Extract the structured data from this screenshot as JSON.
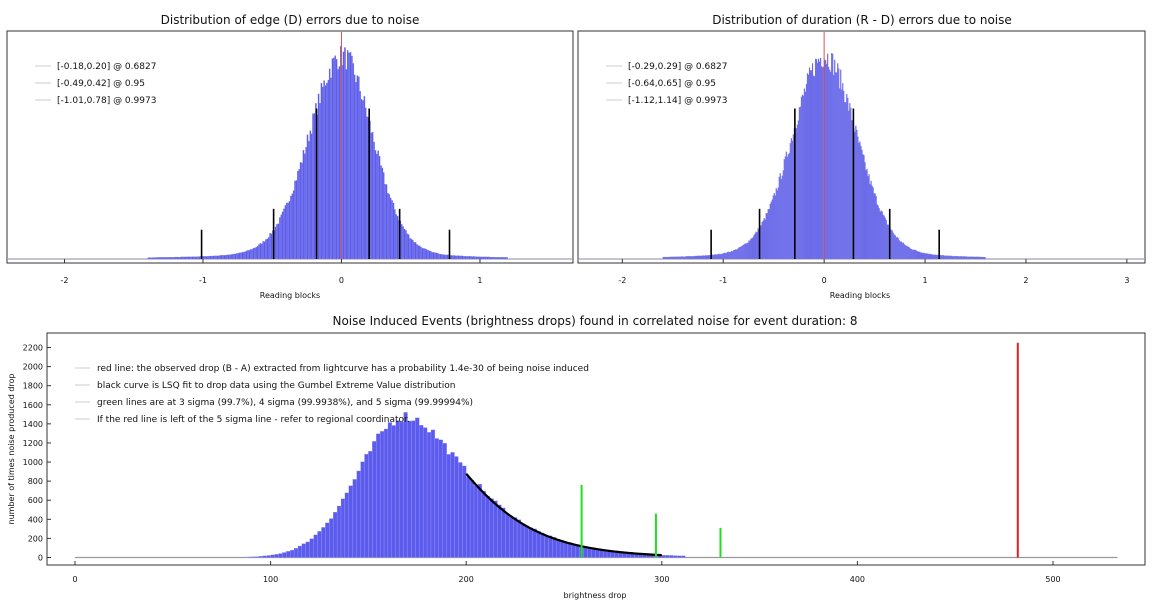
{
  "chart_data": [
    {
      "id": "edge",
      "type": "bar",
      "title": "Distribution of edge (D) errors due to noise",
      "xlabel": "Reading blocks",
      "xlim": [
        -2.35,
        1.65
      ],
      "xticks": [
        -2,
        -1,
        0,
        1
      ],
      "ylim": [
        0,
        1.0
      ],
      "colors": {
        "bars": "#5b5bf0",
        "marker": "#000000",
        "center": "#e05050"
      },
      "histogram": {
        "mean": 0.0,
        "sigma_left": 0.24,
        "sigma_right": 0.22,
        "bin_width": 0.01,
        "range": [
          -1.4,
          1.2
        ]
      },
      "center_line_x": 0.0,
      "legend": [
        {
          "label": "[-0.18,0.20] @ 0.6827"
        },
        {
          "label": "[-0.49,0.42] @ 0.95"
        },
        {
          "label": "[-1.01,0.78] @ 0.9973"
        }
      ],
      "markers": [
        {
          "x": -0.18,
          "height": 0.72
        },
        {
          "x": 0.2,
          "height": 0.72
        },
        {
          "x": -0.49,
          "height": 0.24
        },
        {
          "x": 0.42,
          "height": 0.24
        },
        {
          "x": -1.01,
          "height": 0.14
        },
        {
          "x": 0.78,
          "height": 0.14
        }
      ]
    },
    {
      "id": "duration",
      "type": "bar",
      "title": "Distribution of duration (R - D) errors due to noise",
      "xlabel": "Reading blocks",
      "xlim": [
        -2.35,
        3.15
      ],
      "xticks": [
        -2,
        -1,
        0,
        1,
        2,
        3
      ],
      "ylim": [
        0,
        1.0
      ],
      "colors": {
        "bars": "#5b5bf0",
        "marker": "#000000",
        "center": "#e05050"
      },
      "histogram": {
        "mean": 0.0,
        "sigma_left": 0.32,
        "sigma_right": 0.32,
        "bin_width": 0.01,
        "range": [
          -1.6,
          1.6
        ]
      },
      "center_line_x": 0.0,
      "legend": [
        {
          "label": "[-0.29,0.29] @ 0.6827"
        },
        {
          "label": "[-0.64,0.65] @ 0.95"
        },
        {
          "label": "[-1.12,1.14] @ 0.9973"
        }
      ],
      "markers": [
        {
          "x": -0.29,
          "height": 0.72
        },
        {
          "x": 0.29,
          "height": 0.72
        },
        {
          "x": -0.64,
          "height": 0.24
        },
        {
          "x": 0.65,
          "height": 0.24
        },
        {
          "x": -1.12,
          "height": 0.14
        },
        {
          "x": 1.14,
          "height": 0.14
        }
      ]
    },
    {
      "id": "noise-events",
      "type": "bar",
      "title": "Noise Induced Events (brightness drops) found in correlated noise for event duration: 8",
      "xlabel": "brightness drop",
      "ylabel": "number of times noise produced drop",
      "xlim": [
        -8,
        545
      ],
      "ylim": [
        -50,
        2330
      ],
      "xticks": [
        0,
        100,
        200,
        300,
        400,
        500
      ],
      "yticks": [
        0,
        200,
        400,
        600,
        800,
        1000,
        1200,
        1400,
        1600,
        1800,
        2000,
        2200
      ],
      "colors": {
        "bars": "#5b5bf0",
        "fit": "#000000",
        "sigma": "#22dd22",
        "observed": "#dd2222",
        "baseline": "#9a9a9a"
      },
      "histogram": {
        "mode": 168,
        "peak": 1480,
        "sigma_left": 24,
        "sigma_right": 26,
        "bin_width": 2,
        "range": [
          86,
          312
        ]
      },
      "fit_curve": {
        "from": 200,
        "to": 300,
        "mode": 168,
        "peak": 1480,
        "scale": 26
      },
      "sigma_lines": [
        {
          "x": 259,
          "value": 760
        },
        {
          "x": 297,
          "value": 460
        },
        {
          "x": 330,
          "value": 310
        }
      ],
      "observed_line": {
        "x": 482,
        "value": 2250
      },
      "baseline_to": 533,
      "legend": [
        {
          "label": "red line: the observed drop (B - A) extracted from lightcurve has a probability 1.4e-30 of being noise induced"
        },
        {
          "label": "black curve is LSQ fit to drop data using the Gumbel Extreme Value distribution"
        },
        {
          "label": "green lines are at 3 sigma (99.7%), 4 sigma (99.9938%), and 5 sigma (99.99994%)"
        },
        {
          "label": "If the red line is left of the 5 sigma line - refer to regional coordinator."
        }
      ]
    }
  ]
}
